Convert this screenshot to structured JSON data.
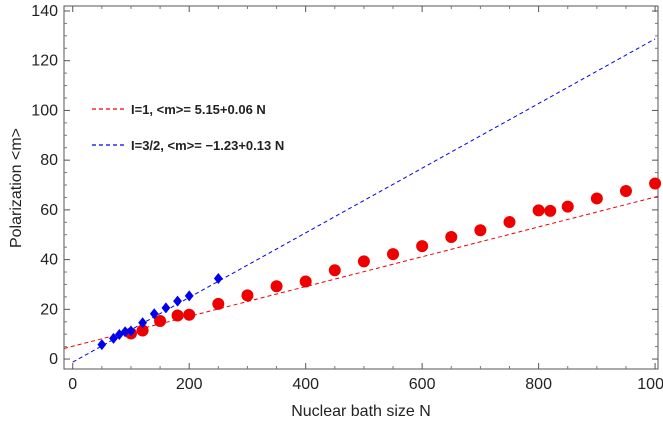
{
  "chart_data": {
    "type": "scatter",
    "title": "",
    "xlabel": "Nuclear bath size N",
    "ylabel": "Polarization <m>",
    "xlim": [
      -15,
      1005
    ],
    "ylim": [
      -4,
      142
    ],
    "xticks": [
      0,
      200,
      400,
      600,
      800,
      1000
    ],
    "yticks": [
      0,
      20,
      40,
      60,
      80,
      100,
      120,
      140
    ],
    "legend_position": "top-left",
    "series": [
      {
        "name": "I=1",
        "marker": "circle",
        "color": "#ee0000",
        "x": [
          100,
          120,
          150,
          180,
          200,
          250,
          300,
          350,
          400,
          450,
          500,
          550,
          600,
          650,
          700,
          750,
          800,
          820,
          850,
          900,
          950,
          1000
        ],
        "y": [
          10.3,
          11.5,
          15.3,
          17.5,
          17.8,
          22.2,
          25.6,
          29.3,
          31.2,
          35.7,
          39.3,
          42.2,
          45.4,
          49.1,
          51.8,
          55.1,
          59.8,
          59.6,
          61.3,
          64.6,
          67.6,
          70.6
        ]
      },
      {
        "name": "I=3/2",
        "marker": "diamond",
        "color": "#0000ee",
        "x": [
          50,
          70,
          80,
          90,
          100,
          120,
          140,
          160,
          180,
          200,
          250
        ],
        "y": [
          5.8,
          8.3,
          9.9,
          11.0,
          11.3,
          14.6,
          18.2,
          20.6,
          23.3,
          25.4,
          32.4
        ]
      }
    ],
    "fits": [
      {
        "label": "I=1, <m>= 5.15+0.06 N",
        "color": "#ee0000",
        "intercept": 5.15,
        "slope": 0.06,
        "x_range": [
          -15,
          1005
        ]
      },
      {
        "label": "I=3/2, <m>= −1.23+0.13 N",
        "color": "#0000ee",
        "intercept": -1.23,
        "slope": 0.13,
        "x_range": [
          0,
          1000
        ]
      }
    ]
  }
}
